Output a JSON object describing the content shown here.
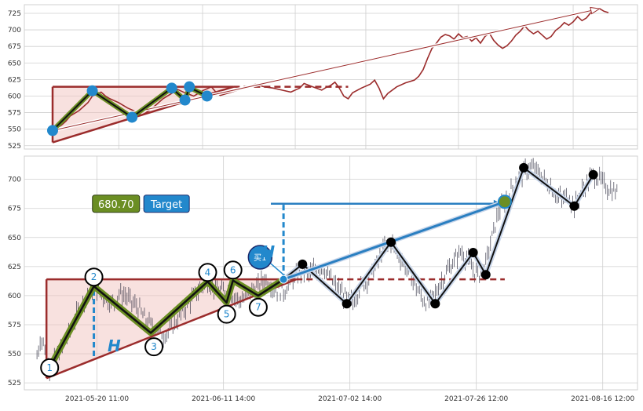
{
  "colors": {
    "price_top": "#9b2c2c",
    "triangle_line": "#9b2c2c",
    "triangle_fill": "#f2c4bf",
    "zigzag_green": "#6b8e23",
    "zigzag_black": "#111111",
    "marker_blue": "#2288cc",
    "target_blue": "#2a7fc1",
    "candle": "#1a1a2e"
  },
  "chart_data": [
    {
      "type": "line",
      "panel": "overview",
      "title": "",
      "xlabel": "",
      "ylabel": "",
      "ylim": [
        520,
        738
      ],
      "yticks": [
        525,
        550,
        575,
        600,
        625,
        650,
        675,
        700,
        725
      ],
      "grid": true,
      "series": [
        {
          "points": [
            [
              0,
              548
            ],
            [
              2,
              556
            ],
            [
              3,
              562
            ],
            [
              4,
              570
            ],
            [
              6,
              578
            ],
            [
              8,
              590
            ],
            [
              9,
              600
            ],
            [
              11,
              606
            ],
            [
              12,
              600
            ],
            [
              13,
              596
            ],
            [
              15,
              590
            ],
            [
              17,
              582
            ],
            [
              19,
              576
            ],
            [
              20,
              571
            ],
            [
              21,
              574
            ],
            [
              23,
              584
            ],
            [
              25,
              596
            ],
            [
              27,
              604
            ],
            [
              28,
              611
            ],
            [
              30,
              605
            ],
            [
              32,
              600
            ],
            [
              34,
              608
            ],
            [
              36,
              614
            ],
            [
              37,
              606
            ],
            [
              38,
              601
            ],
            [
              40,
              605
            ],
            [
              42,
              609
            ],
            [
              44,
              613
            ],
            [
              46,
              618
            ],
            [
              48,
              614
            ],
            [
              50,
              612
            ],
            [
              52,
              609
            ],
            [
              54,
              606
            ],
            [
              56,
              612
            ],
            [
              57,
              619
            ],
            [
              59,
              614
            ],
            [
              61,
              609
            ],
            [
              62,
              613
            ],
            [
              63,
              616
            ],
            [
              64,
              621
            ],
            [
              65,
              612
            ],
            [
              66,
              600
            ],
            [
              67,
              596
            ],
            [
              68,
              605
            ],
            [
              70,
              612
            ],
            [
              72,
              618
            ],
            [
              73,
              624
            ],
            [
              74,
              612
            ],
            [
              75,
              596
            ],
            [
              76,
              604
            ],
            [
              78,
              614
            ],
            [
              80,
              620
            ],
            [
              82,
              624
            ],
            [
              83,
              630
            ],
            [
              84,
              640
            ],
            [
              85,
              657
            ],
            [
              86,
              672
            ],
            [
              87,
              680
            ],
            [
              88,
              689
            ],
            [
              89,
              693
            ],
            [
              90,
              691
            ],
            [
              91,
              686
            ],
            [
              92,
              694
            ],
            [
              93,
              688
            ],
            [
              94,
              690
            ],
            [
              95,
              683
            ],
            [
              96,
              688
            ],
            [
              97,
              680
            ],
            [
              98,
              690
            ],
            [
              99,
              695
            ],
            [
              100,
              684
            ],
            [
              101,
              677
            ],
            [
              102,
              672
            ],
            [
              103,
              676
            ],
            [
              104,
              683
            ],
            [
              105,
              692
            ],
            [
              106,
              698
            ],
            [
              107,
              706
            ],
            [
              108,
              699
            ],
            [
              109,
              694
            ],
            [
              110,
              698
            ],
            [
              111,
              692
            ],
            [
              112,
              686
            ],
            [
              113,
              690
            ],
            [
              114,
              699
            ],
            [
              115,
              704
            ],
            [
              116,
              711
            ],
            [
              117,
              707
            ],
            [
              118,
              712
            ],
            [
              119,
              720
            ],
            [
              120,
              714
            ],
            [
              121,
              718
            ],
            [
              122,
              726
            ],
            [
              123,
              731
            ],
            [
              124,
              732
            ],
            [
              125,
              728
            ],
            [
              126,
              726
            ]
          ]
        }
      ],
      "pattern": {
        "triangle": {
          "base_left_x": 0,
          "bottom_left_y": 530,
          "top_y": 614,
          "apex_x": 41
        },
        "resistance_extension": {
          "from_x": 41,
          "to_x": 67,
          "y": 614
        },
        "zigzag": [
          [
            0,
            548
          ],
          [
            9,
            608
          ],
          [
            18,
            568
          ],
          [
            27,
            612
          ],
          [
            30,
            594
          ],
          [
            31,
            613
          ],
          [
            35,
            600
          ]
        ],
        "pivot_markers": [
          [
            0,
            548
          ],
          [
            9,
            608
          ],
          [
            18,
            568
          ],
          [
            27,
            612
          ],
          [
            30,
            594
          ],
          [
            31,
            614
          ],
          [
            35,
            600
          ]
        ],
        "trend_arrow": {
          "from": [
            0,
            548
          ],
          "to": [
            124,
            732
          ]
        }
      },
      "x_index_ticks": [
        15,
        34,
        55,
        71,
        92,
        118
      ]
    },
    {
      "type": "candlestick",
      "panel": "detail",
      "title": "",
      "xlabel": "",
      "ylabel": "",
      "ylim": [
        519,
        720
      ],
      "yticks": [
        525,
        550,
        575,
        600,
        625,
        650,
        675,
        700
      ],
      "xticks": [
        "2021-05-20 11:00",
        "2021-06-11 14:00",
        "2021-07-02 14:00",
        "2021-07-26 12:00",
        "2021-08-16 12:00"
      ],
      "x_tick_index": [
        9.5,
        29.5,
        49.5,
        69.5,
        89.5
      ],
      "x_range": [
        -2,
        95
      ],
      "grid": true,
      "candle_path": [
        [
          0,
          548
        ],
        [
          0.5,
          562
        ],
        [
          1,
          560
        ],
        [
          2,
          538
        ],
        [
          3,
          548
        ],
        [
          4,
          556
        ],
        [
          5,
          568
        ],
        [
          6,
          580
        ],
        [
          7,
          592
        ],
        [
          8,
          600
        ],
        [
          9,
          608
        ],
        [
          10,
          602
        ],
        [
          11,
          597
        ],
        [
          12,
          593
        ],
        [
          13,
          602
        ],
        [
          14,
          600
        ],
        [
          15,
          594
        ],
        [
          16,
          590
        ],
        [
          17,
          580
        ],
        [
          18,
          575
        ],
        [
          19,
          572
        ],
        [
          20,
          566
        ],
        [
          21,
          570
        ],
        [
          22,
          578
        ],
        [
          23,
          586
        ],
        [
          24,
          594
        ],
        [
          25,
          600
        ],
        [
          26,
          608
        ],
        [
          27,
          612
        ],
        [
          28,
          607
        ],
        [
          29,
          603
        ],
        [
          30,
          605
        ],
        [
          31,
          600
        ],
        [
          32,
          596
        ],
        [
          33,
          598
        ],
        [
          34,
          605
        ],
        [
          35,
          608
        ],
        [
          36,
          615
        ],
        [
          37,
          609
        ],
        [
          38,
          605
        ],
        [
          39,
          603
        ],
        [
          40,
          612
        ],
        [
          41,
          616
        ],
        [
          42,
          622
        ],
        [
          43,
          618
        ],
        [
          44,
          623
        ],
        [
          45,
          626
        ],
        [
          46,
          618
        ],
        [
          47,
          610
        ],
        [
          48,
          604
        ],
        [
          49,
          597
        ],
        [
          50,
          594
        ],
        [
          51,
          606
        ],
        [
          52,
          612
        ],
        [
          53,
          620
        ],
        [
          54,
          630
        ],
        [
          55,
          642
        ],
        [
          56,
          646
        ],
        [
          57,
          638
        ],
        [
          58,
          628
        ],
        [
          59,
          618
        ],
        [
          60,
          607
        ],
        [
          61,
          597
        ],
        [
          62,
          593
        ],
        [
          63,
          602
        ],
        [
          64,
          613
        ],
        [
          65,
          622
        ],
        [
          66,
          630
        ],
        [
          67,
          638
        ],
        [
          68,
          632
        ],
        [
          69,
          622
        ],
        [
          70,
          618
        ],
        [
          71,
          628
        ],
        [
          72,
          650
        ],
        [
          73,
          672
        ],
        [
          74,
          680
        ],
        [
          75,
          690
        ],
        [
          76,
          700
        ],
        [
          77,
          706
        ],
        [
          78,
          710
        ],
        [
          79,
          708
        ],
        [
          80,
          701
        ],
        [
          81,
          695
        ],
        [
          82,
          688
        ],
        [
          83,
          682
        ],
        [
          84,
          686
        ],
        [
          85,
          677
        ],
        [
          86,
          688
        ],
        [
          87,
          696
        ],
        [
          88,
          704
        ],
        [
          89,
          700
        ],
        [
          90,
          694
        ],
        [
          91,
          690
        ],
        [
          92,
          688
        ]
      ],
      "pattern": {
        "triangle": {
          "base_left_x": 1.5,
          "bottom_left_y": 529,
          "top_y": 614,
          "apex_x": 41
        },
        "resistance_extension": {
          "from_x": 41,
          "to_x": 74,
          "y": 614
        },
        "green_zigzag": [
          [
            2,
            538
          ],
          [
            9,
            608
          ],
          [
            18,
            568
          ],
          [
            27,
            612
          ],
          [
            30,
            594
          ],
          [
            31,
            613
          ],
          [
            35,
            600
          ],
          [
            39,
            614
          ]
        ],
        "black_zigzag": [
          [
            39,
            614
          ],
          [
            42,
            627
          ],
          [
            49,
            593
          ],
          [
            56,
            646
          ],
          [
            63,
            593
          ],
          [
            69,
            637
          ],
          [
            71,
            618
          ],
          [
            77,
            710
          ],
          [
            85,
            677
          ],
          [
            88,
            704
          ]
        ],
        "black_markers": [
          [
            42,
            627
          ],
          [
            49,
            593
          ],
          [
            56,
            646
          ],
          [
            63,
            593
          ],
          [
            69,
            637
          ],
          [
            71,
            618
          ],
          [
            77,
            710
          ],
          [
            85,
            677
          ],
          [
            88,
            704
          ]
        ],
        "numbered_pivots": [
          {
            "label": "1",
            "x": 2,
            "y": 538
          },
          {
            "label": "2",
            "x": 9,
            "y": 616
          },
          {
            "label": "3",
            "x": 18.5,
            "y": 556
          },
          {
            "label": "4",
            "x": 27,
            "y": 620
          },
          {
            "label": "5",
            "x": 30,
            "y": 584
          },
          {
            "label": "6",
            "x": 31,
            "y": 622
          },
          {
            "label": "7",
            "x": 35,
            "y": 590
          }
        ],
        "height_line_1": {
          "x": 9,
          "y_from": 548,
          "y_to": 610
        },
        "height_line_2": {
          "x": 39,
          "y_from": 614,
          "y_to": 679
        },
        "target_arrow": {
          "from": [
            39,
            614
          ],
          "to": [
            74,
            680.7
          ]
        },
        "target_hline": {
          "from_x": 37,
          "to_x": 72.5,
          "y": 679
        },
        "breakout_point": [
          39,
          614
        ],
        "target_point": [
          74,
          680.7
        ],
        "buy_marker": {
          "x": 35.3,
          "y": 633
        },
        "h_label_1": {
          "x": 12.2,
          "y": 552
        },
        "h_label_2": {
          "x": 36.6,
          "y": 633
        },
        "value_badge_pos": {
          "x": 12.5,
          "y": 679
        },
        "target_badge_pos": {
          "x": 20.5,
          "y": 679
        }
      }
    }
  ],
  "labels": {
    "value_badge": "680.70",
    "target_badge": "Target",
    "buy_marker": "买1",
    "height_marker": "H"
  }
}
